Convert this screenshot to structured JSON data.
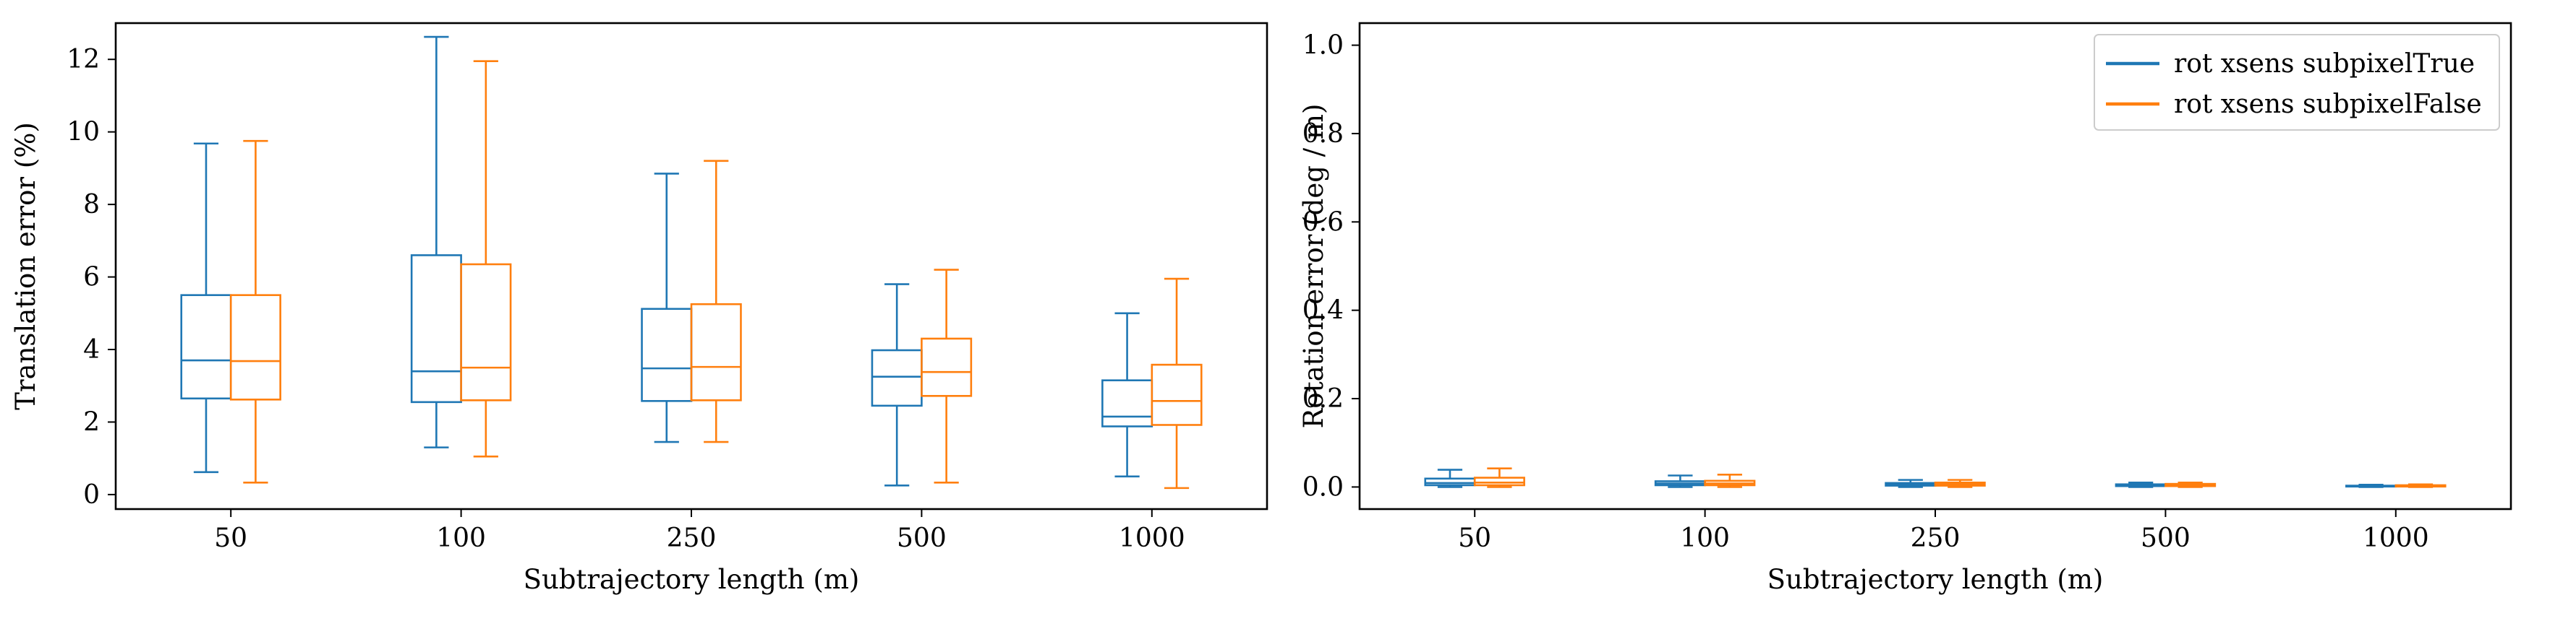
{
  "chart_data": [
    {
      "type": "box",
      "xlabel": "Subtrajectory length (m)",
      "ylabel": "Translation error (%)",
      "categories": [
        "50",
        "100",
        "250",
        "500",
        "1000"
      ],
      "ylim": [
        -0.4,
        13.0
      ],
      "yticks": [
        0,
        2,
        4,
        6,
        8,
        10,
        12
      ],
      "series": [
        {
          "color": "#1f77b4",
          "boxes": [
            {
              "whislo": 0.62,
              "q1": 2.65,
              "med": 3.7,
              "q3": 5.5,
              "whishi": 9.68
            },
            {
              "whislo": 1.3,
              "q1": 2.55,
              "med": 3.4,
              "q3": 6.6,
              "whishi": 12.62
            },
            {
              "whislo": 1.45,
              "q1": 2.58,
              "med": 3.48,
              "q3": 5.12,
              "whishi": 8.85
            },
            {
              "whislo": 0.25,
              "q1": 2.45,
              "med": 3.25,
              "q3": 3.98,
              "whishi": 5.8
            },
            {
              "whislo": 0.5,
              "q1": 1.88,
              "med": 2.15,
              "q3": 3.15,
              "whishi": 5.0
            }
          ]
        },
        {
          "color": "#ff7f0e",
          "boxes": [
            {
              "whislo": 0.33,
              "q1": 2.62,
              "med": 3.68,
              "q3": 5.5,
              "whishi": 9.75
            },
            {
              "whislo": 1.05,
              "q1": 2.6,
              "med": 3.5,
              "q3": 6.35,
              "whishi": 11.95
            },
            {
              "whislo": 1.45,
              "q1": 2.6,
              "med": 3.52,
              "q3": 5.25,
              "whishi": 9.2
            },
            {
              "whislo": 0.33,
              "q1": 2.72,
              "med": 3.38,
              "q3": 4.3,
              "whishi": 6.2
            },
            {
              "whislo": 0.18,
              "q1": 1.92,
              "med": 2.58,
              "q3": 3.58,
              "whishi": 5.95
            }
          ]
        }
      ]
    },
    {
      "type": "box",
      "xlabel": "Subtrajectory length (m)",
      "ylabel": "Rotation error (deg / m)",
      "categories": [
        "50",
        "100",
        "250",
        "500",
        "1000"
      ],
      "ylim": [
        -0.05,
        1.05
      ],
      "yticks": [
        "0.0",
        "0.2",
        "0.4",
        "0.6",
        "0.8",
        "1.0"
      ],
      "legend_position": "upper-right",
      "series": [
        {
          "name": "rot xsens subpixelTrue",
          "color": "#1f77b4",
          "boxes": [
            {
              "whislo": 0.0,
              "q1": 0.004,
              "med": 0.009,
              "q3": 0.019,
              "whishi": 0.039
            },
            {
              "whislo": 0.0,
              "q1": 0.004,
              "med": 0.008,
              "q3": 0.013,
              "whishi": 0.026
            },
            {
              "whislo": 0.0,
              "q1": 0.003,
              "med": 0.006,
              "q3": 0.009,
              "whishi": 0.016
            },
            {
              "whislo": 0.0,
              "q1": 0.002,
              "med": 0.004,
              "q3": 0.006,
              "whishi": 0.01
            },
            {
              "whislo": 0.0,
              "q1": 0.001,
              "med": 0.002,
              "q3": 0.003,
              "whishi": 0.005
            }
          ]
        },
        {
          "name": "rot xsens subpixelFalse",
          "color": "#ff7f0e",
          "boxes": [
            {
              "whislo": 0.0,
              "q1": 0.004,
              "med": 0.01,
              "q3": 0.021,
              "whishi": 0.042
            },
            {
              "whislo": 0.0,
              "q1": 0.004,
              "med": 0.008,
              "q3": 0.014,
              "whishi": 0.028
            },
            {
              "whislo": 0.0,
              "q1": 0.003,
              "med": 0.006,
              "q3": 0.01,
              "whishi": 0.016
            },
            {
              "whislo": 0.0,
              "q1": 0.002,
              "med": 0.004,
              "q3": 0.007,
              "whishi": 0.01
            },
            {
              "whislo": 0.0,
              "q1": 0.001,
              "med": 0.002,
              "q3": 0.004,
              "whishi": 0.006
            }
          ]
        }
      ]
    }
  ]
}
